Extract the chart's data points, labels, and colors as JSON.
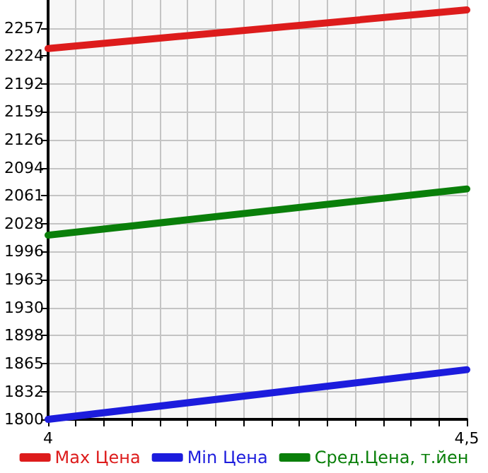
{
  "chart_data": {
    "type": "line",
    "x": [
      4,
      4.5
    ],
    "series": [
      {
        "name": "Max Цена",
        "color": "#dd1c1c",
        "values": [
          2233,
          2278
        ]
      },
      {
        "name": "Min Цена",
        "color": "#1c1cdd",
        "values": [
          1800,
          1858
        ]
      },
      {
        "name": "Сред.Цена, т.йен",
        "color": "#0a7f0a",
        "values": [
          2015,
          2069
        ]
      }
    ],
    "xlim": [
      4,
      4.5
    ],
    "xticks": [
      4,
      {
        "value": 4.0333,
        "label": null
      },
      {
        "value": 4.0667,
        "label": null
      },
      {
        "value": 4.1,
        "label": null
      },
      {
        "value": 4.1333,
        "label": null
      },
      {
        "value": 4.1667,
        "label": null
      },
      {
        "value": 4.2,
        "label": null
      },
      {
        "value": 4.2333,
        "label": null
      },
      {
        "value": 4.2667,
        "label": null
      },
      {
        "value": 4.3,
        "label": null
      },
      {
        "value": 4.3333,
        "label": null
      },
      {
        "value": 4.3667,
        "label": null
      },
      {
        "value": 4.4,
        "label": null
      },
      {
        "value": 4.4333,
        "label": null
      },
      {
        "value": 4.4667,
        "label": null
      },
      {
        "value": 4.5,
        "label": "4,5"
      }
    ],
    "ylim": [
      1800,
      2289.6
    ],
    "yticks": [
      1800,
      {
        "value": 1832.4,
        "label": "1832"
      },
      {
        "value": 1865.3,
        "label": "1865"
      },
      {
        "value": 1897.9,
        "label": "1898"
      },
      {
        "value": 1930.4,
        "label": "1930"
      },
      {
        "value": 1963.2,
        "label": "1963"
      },
      {
        "value": 1995.9,
        "label": "1996"
      },
      {
        "value": 2028.5,
        "label": "2028"
      },
      {
        "value": 2061.1,
        "label": "2061"
      },
      {
        "value": 2093.8,
        "label": "2094"
      },
      {
        "value": 2126.4,
        "label": "2126"
      },
      {
        "value": 2159.1,
        "label": "2159"
      },
      {
        "value": 2191.7,
        "label": "2192"
      },
      {
        "value": 2224.4,
        "label": "2224"
      },
      {
        "value": 2257,
        "label": "2257"
      }
    ],
    "grid": true,
    "legend": "bottom",
    "marker": "none",
    "line_style": "solid"
  }
}
